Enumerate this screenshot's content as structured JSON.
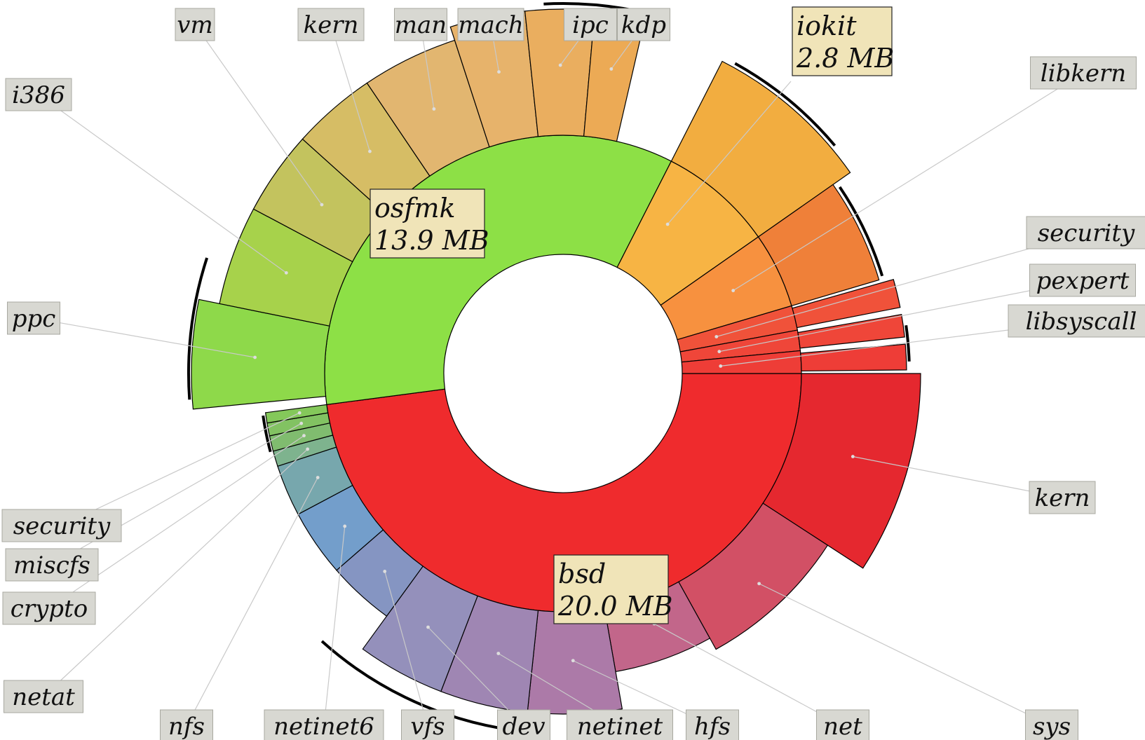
{
  "chart_data": {
    "type": "sunburst",
    "unit": "MB",
    "top_level": [
      {
        "name": "bsd",
        "size_label": "20.0 MB",
        "color": "#ef2b2d",
        "children": [
          {
            "name": "kern",
            "color": "#e5282f"
          },
          {
            "name": "sys",
            "color": "#d25065"
          },
          {
            "name": "net",
            "color": "#c2668a"
          },
          {
            "name": "hfs",
            "color": "#ac7aa8"
          },
          {
            "name": "netinet",
            "color": "#9f86b3"
          },
          {
            "name": "dev",
            "color": "#9490bb"
          },
          {
            "name": "vfs",
            "color": "#8595c2"
          },
          {
            "name": "netinet6",
            "color": "#739ecb"
          },
          {
            "name": "nfs",
            "color": "#77a7ad"
          },
          {
            "name": "netat",
            "color": "#7eb38e"
          },
          {
            "name": "crypto",
            "color": "#80bc6f"
          },
          {
            "name": "miscfs",
            "color": "#82c262"
          },
          {
            "name": "security",
            "color": "#84c85a"
          }
        ]
      },
      {
        "name": "osfmk",
        "size_label": "13.9 MB",
        "color": "#8de046",
        "children": [
          {
            "name": "ppc",
            "color": "#8ed94a"
          },
          {
            "name": "i386",
            "color": "#a7d24b"
          },
          {
            "name": "vm",
            "color": "#c3c35e"
          },
          {
            "name": "kern",
            "color": "#d6bd65"
          },
          {
            "name": "man",
            "color": "#e2b670"
          },
          {
            "name": "mach",
            "color": "#e7b36b"
          },
          {
            "name": "ipc",
            "color": "#eaae5f"
          },
          {
            "name": "kdp",
            "color": "#ecaa55"
          }
        ]
      },
      {
        "name": "iokit",
        "size_label": "2.8 MB",
        "color": "#f7b444",
        "children": [
          {
            "name": "iokit",
            "color": "#f2ad40"
          }
        ]
      },
      {
        "name": "libkern",
        "color": "#f7913f",
        "children": [
          {
            "name": "libkern",
            "color": "#ef8039"
          }
        ]
      },
      {
        "name": "security",
        "color": "#f0523a"
      },
      {
        "name": "pexpert",
        "color": "#ef4639"
      },
      {
        "name": "libsyscall",
        "color": "#ee3d37"
      }
    ]
  }
}
